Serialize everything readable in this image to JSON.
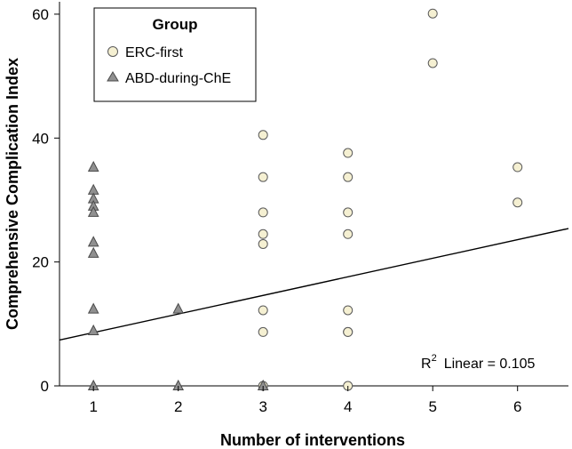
{
  "chart_data": {
    "type": "scatter",
    "xlabel": "Number of interventions",
    "ylabel": "Comprehensive Complication Index",
    "xlim": [
      0.6,
      6.6
    ],
    "ylim": [
      0,
      62
    ],
    "x_ticks": [
      1,
      2,
      3,
      4,
      5,
      6
    ],
    "y_ticks": [
      0,
      20,
      40,
      60
    ],
    "grid": false,
    "legend": {
      "title": "Group",
      "placement": "top-left",
      "entries": [
        "ERC-first",
        "ABD-during-ChE"
      ]
    },
    "series": [
      {
        "name": "ERC-first",
        "marker": "circle",
        "color": "#f5f0d2",
        "points": [
          {
            "x": 3,
            "y": 40.5
          },
          {
            "x": 3,
            "y": 33.7
          },
          {
            "x": 3,
            "y": 28.0
          },
          {
            "x": 3,
            "y": 24.5
          },
          {
            "x": 3,
            "y": 22.9
          },
          {
            "x": 3,
            "y": 12.2
          },
          {
            "x": 3,
            "y": 8.7
          },
          {
            "x": 3,
            "y": 0
          },
          {
            "x": 4,
            "y": 37.6
          },
          {
            "x": 4,
            "y": 33.7
          },
          {
            "x": 4,
            "y": 28.0
          },
          {
            "x": 4,
            "y": 24.5
          },
          {
            "x": 4,
            "y": 12.2
          },
          {
            "x": 4,
            "y": 8.7
          },
          {
            "x": 4,
            "y": 8.7
          },
          {
            "x": 4,
            "y": 0
          },
          {
            "x": 5,
            "y": 60.1
          },
          {
            "x": 5,
            "y": 52.1
          },
          {
            "x": 6,
            "y": 35.3
          },
          {
            "x": 6,
            "y": 29.6
          }
        ]
      },
      {
        "name": "ABD-during-ChE",
        "marker": "triangle",
        "color": "#909090",
        "points": [
          {
            "x": 1,
            "y": 35.3
          },
          {
            "x": 1,
            "y": 31.6
          },
          {
            "x": 1,
            "y": 30.2
          },
          {
            "x": 1,
            "y": 29.0
          },
          {
            "x": 1,
            "y": 28.0
          },
          {
            "x": 1,
            "y": 23.2
          },
          {
            "x": 1,
            "y": 21.4
          },
          {
            "x": 1,
            "y": 12.4
          },
          {
            "x": 1,
            "y": 8.9
          },
          {
            "x": 1,
            "y": 0
          },
          {
            "x": 2,
            "y": 12.4
          },
          {
            "x": 2,
            "y": 0
          },
          {
            "x": 3,
            "y": 0
          }
        ]
      }
    ],
    "fit_line": {
      "type": "linear",
      "x": [
        0.6,
        6.6
      ],
      "y": [
        7.4,
        25.4
      ],
      "annotation_r2_label": "R",
      "annotation_r2_sup": "2",
      "annotation_text": "Linear = 0.105"
    }
  }
}
